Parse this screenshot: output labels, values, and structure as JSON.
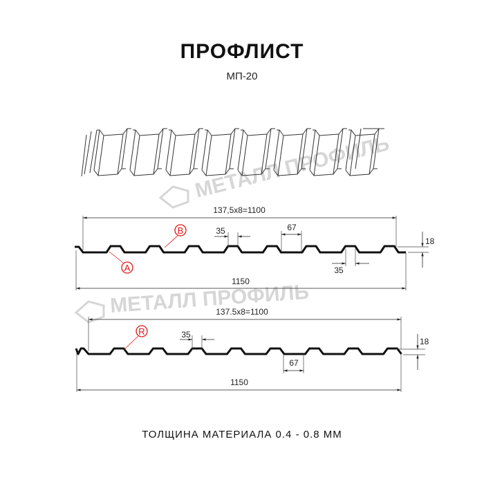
{
  "title": "ПРОФЛИСТ",
  "subtitle": "МП-20",
  "watermark": "МЕТАЛЛ ПРОФИЛЬ",
  "footer": "ТОЛЩИНА МАТЕРИАЛА 0.4 - 0.8 ММ",
  "profile_a": {
    "pitch_label": "137,5x8=1100",
    "total_width": "1150",
    "top_width": "35",
    "bottom_width": "35",
    "gap": "67",
    "height": "18",
    "marker_b": "B",
    "marker_a": "A"
  },
  "profile_r": {
    "pitch_label": "137.5x8=1100",
    "total_width": "1150",
    "top_width": "35",
    "gap": "67",
    "height": "18",
    "marker_r": "R"
  },
  "colors": {
    "line": "#111111",
    "marker": "#e01515",
    "watermark": "#d6d6d6"
  }
}
